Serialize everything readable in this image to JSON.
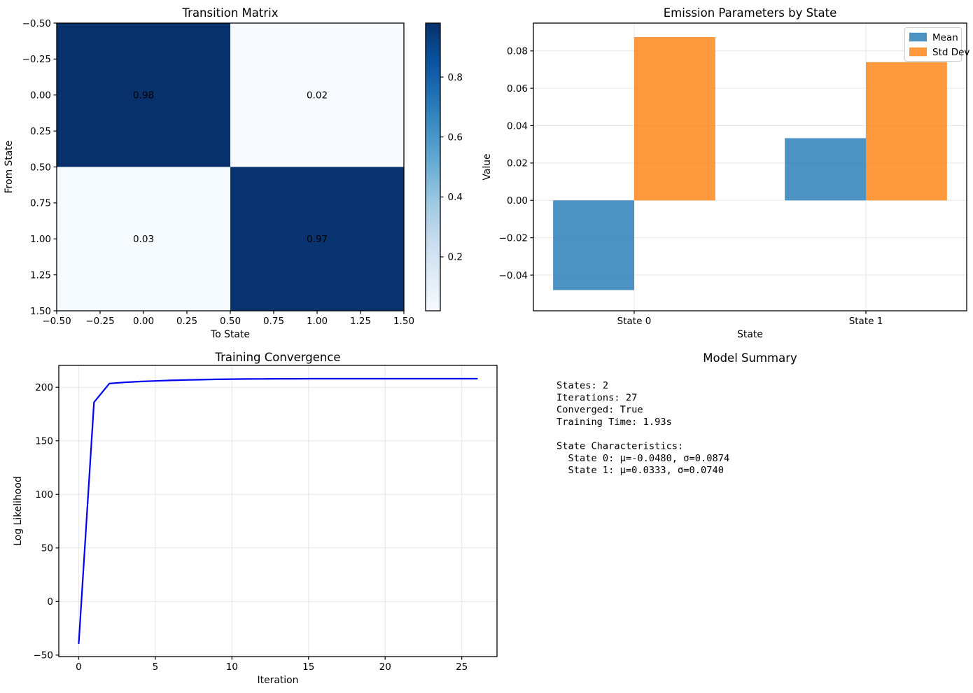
{
  "figure": {
    "background": "#ffffff"
  },
  "chart_data": [
    {
      "id": "transition-matrix",
      "type": "heatmap",
      "title": "Transition Matrix",
      "xlabel": "To State",
      "ylabel": "From State",
      "colormap": "Blues",
      "vmin": 0.02,
      "vmax": 0.98,
      "rows": 2,
      "cols": 2,
      "cells": [
        {
          "row": 0,
          "col": 0,
          "value": 0.98,
          "label": "0.98"
        },
        {
          "row": 0,
          "col": 1,
          "value": 0.02,
          "label": "0.02"
        },
        {
          "row": 1,
          "col": 0,
          "value": 0.03,
          "label": "0.03"
        },
        {
          "row": 1,
          "col": 1,
          "value": 0.97,
          "label": "0.97"
        }
      ],
      "xticks": [
        {
          "value": -0.5,
          "label": "−0.50"
        },
        {
          "value": -0.25,
          "label": "−0.25"
        },
        {
          "value": 0.0,
          "label": "0.00"
        },
        {
          "value": 0.25,
          "label": "0.25"
        },
        {
          "value": 0.5,
          "label": "0.50"
        },
        {
          "value": 0.75,
          "label": "0.75"
        },
        {
          "value": 1.0,
          "label": "1.00"
        },
        {
          "value": 1.25,
          "label": "1.25"
        },
        {
          "value": 1.5,
          "label": "1.50"
        }
      ],
      "yticks": [
        {
          "value": -0.5,
          "label": "−0.50"
        },
        {
          "value": -0.25,
          "label": "−0.25"
        },
        {
          "value": 0.0,
          "label": "0.00"
        },
        {
          "value": 0.25,
          "label": "0.25"
        },
        {
          "value": 0.5,
          "label": "0.50"
        },
        {
          "value": 0.75,
          "label": "0.75"
        },
        {
          "value": 1.0,
          "label": "1.00"
        },
        {
          "value": 1.25,
          "label": "1.25"
        },
        {
          "value": 1.5,
          "label": "1.50"
        }
      ],
      "colorbar_ticks": [
        {
          "value": 0.2,
          "label": "0.2"
        },
        {
          "value": 0.4,
          "label": "0.4"
        },
        {
          "value": 0.6,
          "label": "0.6"
        },
        {
          "value": 0.8,
          "label": "0.8"
        }
      ]
    },
    {
      "id": "emission-parameters",
      "type": "bar",
      "title": "Emission Parameters by State",
      "xlabel": "State",
      "ylabel": "Value",
      "categories": [
        {
          "x": 0,
          "label": "State 0"
        },
        {
          "x": 1,
          "label": "State 1"
        }
      ],
      "series": [
        {
          "name": "Mean",
          "color": "#1f77b4",
          "values": [
            -0.048,
            0.0333
          ]
        },
        {
          "name": "Std Dev",
          "color": "#ff7f0e",
          "values": [
            0.0874,
            0.074
          ]
        }
      ],
      "bar_alpha": 0.8,
      "bar_width": 0.35,
      "xlim": [
        -0.435,
        1.435
      ],
      "ylim": [
        -0.0591,
        0.0949
      ],
      "yticks": [
        {
          "value": 0.08,
          "label": "0.08"
        },
        {
          "value": 0.06,
          "label": "0.06"
        },
        {
          "value": 0.04,
          "label": "0.04"
        },
        {
          "value": 0.02,
          "label": "0.02"
        },
        {
          "value": 0.0,
          "label": "0.00"
        },
        {
          "value": -0.02,
          "label": "−0.02"
        },
        {
          "value": -0.04,
          "label": "−0.04"
        }
      ],
      "legend_position": "upper right",
      "grid": true
    },
    {
      "id": "training-convergence",
      "type": "line",
      "title": "Training Convergence",
      "xlabel": "Iteration",
      "ylabel": "Log Likelihood",
      "line_color": "#0000EE",
      "x": [
        0,
        1,
        2,
        3,
        4,
        5,
        6,
        7,
        8,
        9,
        10,
        11,
        12,
        13,
        14,
        15,
        16,
        17,
        18,
        19,
        20,
        21,
        22,
        23,
        24,
        25,
        26
      ],
      "y": [
        -39,
        186,
        203.5,
        204.6,
        205.4,
        205.9,
        206.4,
        206.8,
        207.1,
        207.4,
        207.6,
        207.7,
        207.8,
        207.9,
        207.9,
        208,
        208,
        208,
        208,
        208,
        208,
        208,
        208,
        208,
        208,
        208,
        208
      ],
      "xlim": [
        -1.3,
        27.3
      ],
      "ylim": [
        -51.4,
        220.4
      ],
      "xticks": [
        {
          "value": 0,
          "label": "0"
        },
        {
          "value": 5,
          "label": "5"
        },
        {
          "value": 10,
          "label": "10"
        },
        {
          "value": 15,
          "label": "15"
        },
        {
          "value": 20,
          "label": "20"
        },
        {
          "value": 25,
          "label": "25"
        }
      ],
      "yticks": [
        {
          "value": -50,
          "label": "−50"
        },
        {
          "value": 0,
          "label": "0"
        },
        {
          "value": 50,
          "label": "50"
        },
        {
          "value": 100,
          "label": "100"
        },
        {
          "value": 150,
          "label": "150"
        },
        {
          "value": 200,
          "label": "200"
        }
      ],
      "grid": true
    },
    {
      "id": "model-summary",
      "type": "text",
      "title": "Model Summary",
      "lines": [
        "States: 2",
        "Iterations: 27",
        "Converged: True",
        "Training Time: 1.93s",
        "",
        "State Characteristics:",
        "  State 0: μ=-0.0480, σ=0.0874",
        "  State 1: μ=0.0333, σ=0.0740"
      ]
    }
  ]
}
